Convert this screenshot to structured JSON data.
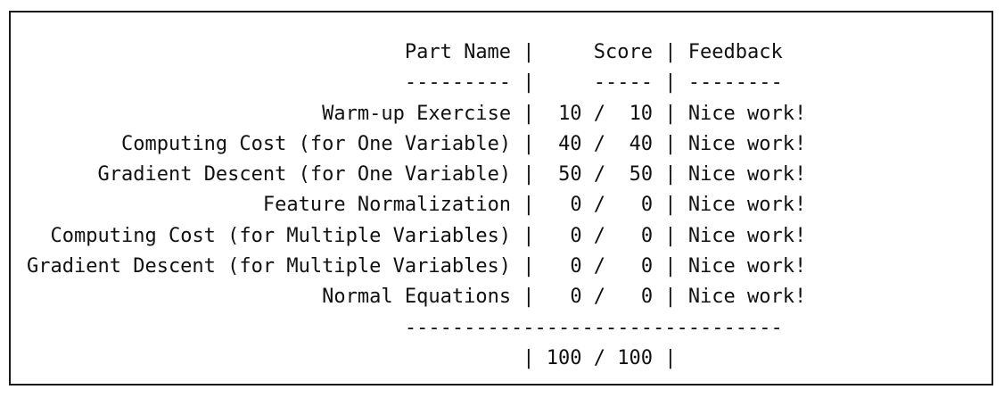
{
  "header": {
    "part_name": "Part Name",
    "score": "Score",
    "feedback": "Feedback"
  },
  "underline": {
    "part_name": "---------",
    "score": "-----",
    "feedback": "--------"
  },
  "rows": [
    {
      "part": "Warm-up Exercise",
      "earned": "10",
      "possible": "10",
      "feedback": "Nice work!"
    },
    {
      "part": "Computing Cost (for One Variable)",
      "earned": "40",
      "possible": "40",
      "feedback": "Nice work!"
    },
    {
      "part": "Gradient Descent (for One Variable)",
      "earned": "50",
      "possible": "50",
      "feedback": "Nice work!"
    },
    {
      "part": "Feature Normalization",
      "earned": "0",
      "possible": "0",
      "feedback": "Nice work!"
    },
    {
      "part": "Computing Cost (for Multiple Variables)",
      "earned": "0",
      "possible": "0",
      "feedback": "Nice work!"
    },
    {
      "part": "Gradient Descent (for Multiple Variables)",
      "earned": "0",
      "possible": "0",
      "feedback": "Nice work!"
    },
    {
      "part": "Normal Equations",
      "earned": "0",
      "possible": "0",
      "feedback": "Nice work!"
    }
  ],
  "total_rule": "--------------------------------",
  "total": {
    "earned": "100",
    "possible": "100"
  }
}
